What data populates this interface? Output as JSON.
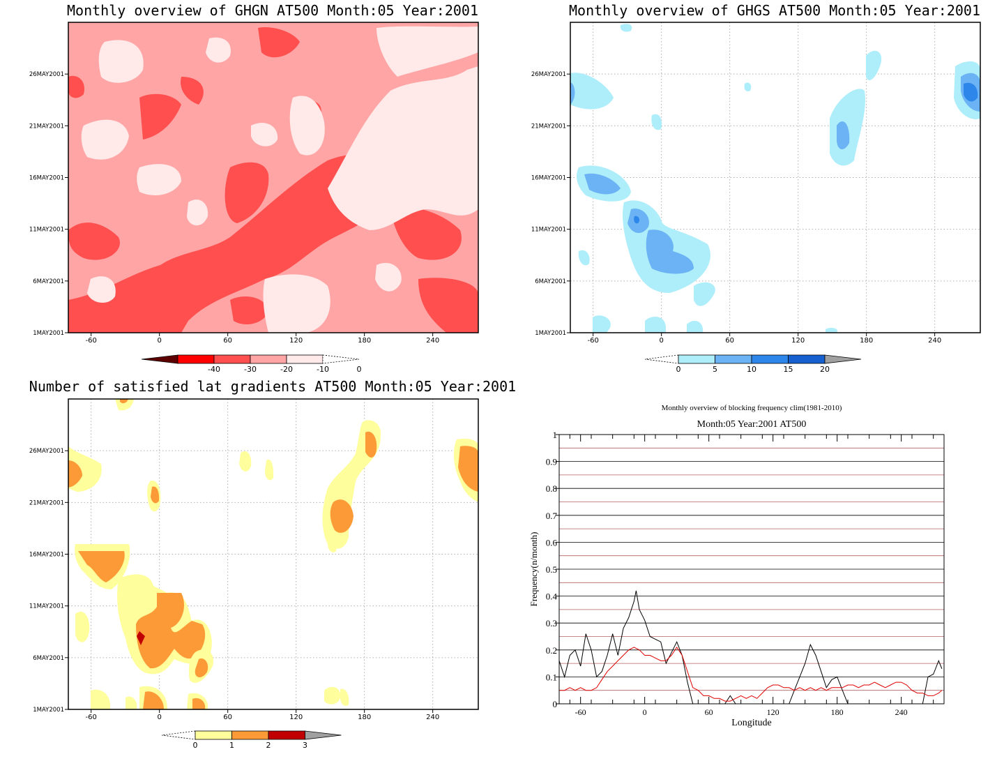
{
  "panels": {
    "ghgn": {
      "title": "Monthly overview of GHGN AT500 Month:05 Year:2001",
      "y_ticks": [
        "1MAY2001",
        "6MAY2001",
        "11MAY2001",
        "16MAY2001",
        "21MAY2001",
        "26MAY2001"
      ],
      "x_ticks": [
        "-60",
        "0",
        "60",
        "120",
        "180",
        "240"
      ],
      "colorbar_labels": [
        "-40",
        "-30",
        "-20",
        "-10",
        "0"
      ],
      "colors": [
        "#5c0000",
        "#ff0000",
        "#ff4f4f",
        "#ffa5a5",
        "#ffe9e9",
        "#ffffff"
      ]
    },
    "ghgs": {
      "title": "Monthly overview of GHGS AT500 Month:05 Year:2001",
      "y_ticks": [
        "1MAY2001",
        "6MAY2001",
        "11MAY2001",
        "16MAY2001",
        "21MAY2001",
        "26MAY2001"
      ],
      "x_ticks": [
        "-60",
        "0",
        "60",
        "120",
        "180",
        "240"
      ],
      "colorbar_labels": [
        "0",
        "5",
        "10",
        "15",
        "20"
      ],
      "colors": [
        "#ffffff",
        "#aeeefa",
        "#6bb3f4",
        "#2d86ea",
        "#1661cf",
        "#a0a0a0"
      ]
    },
    "gradients": {
      "title": "Number of satisfied lat gradients AT500 Month:05 Year:2001",
      "y_ticks": [
        "1MAY2001",
        "6MAY2001",
        "11MAY2001",
        "16MAY2001",
        "21MAY2001",
        "26MAY2001"
      ],
      "x_ticks": [
        "-60",
        "0",
        "60",
        "120",
        "180",
        "240"
      ],
      "colorbar_labels": [
        "0",
        "1",
        "2",
        "3"
      ],
      "colors": [
        "#ffffff",
        "#fefe9c",
        "#fb9a36",
        "#c00000",
        "#a0a0a0"
      ]
    }
  },
  "chart_data": {
    "type": "line",
    "title": "Monthly overview of blocking frequency clim(1981-2010)",
    "subtitle": "Month:05 Year:2001  AT500",
    "xlabel": "Longitude",
    "ylabel": "Frequency(n/month)",
    "xlim": [
      -80,
      280
    ],
    "ylim": [
      0,
      1
    ],
    "x_ticks": [
      -60,
      0,
      60,
      120,
      180,
      240
    ],
    "y_ticks": [
      0,
      0.1,
      0.2,
      0.3,
      0.4,
      0.5,
      0.6,
      0.7,
      0.8,
      0.9,
      1
    ],
    "series": [
      {
        "color": "#000000",
        "x": [
          -80,
          -75,
          -70,
          -65,
          -60,
          -55,
          -50,
          -45,
          -40,
          -35,
          -30,
          -25,
          -20,
          -15,
          -10,
          -8,
          -5,
          0,
          5,
          10,
          15,
          20,
          25,
          30,
          35,
          40,
          45,
          50,
          55,
          60,
          65,
          70,
          75,
          80,
          85,
          90,
          95,
          100,
          105,
          110,
          115,
          120,
          125,
          130,
          135,
          140,
          145,
          150,
          155,
          160,
          165,
          170,
          175,
          180,
          185,
          190,
          195,
          200,
          205,
          210,
          215,
          220,
          225,
          230,
          235,
          240,
          245,
          250,
          255,
          260,
          265,
          270,
          275,
          278
        ],
        "y": [
          0.16,
          0.1,
          0.18,
          0.2,
          0.14,
          0.26,
          0.2,
          0.1,
          0.12,
          0.18,
          0.26,
          0.18,
          0.28,
          0.32,
          0.38,
          0.42,
          0.35,
          0.31,
          0.25,
          0.24,
          0.23,
          0.15,
          0.19,
          0.23,
          0.18,
          0.08,
          0.0,
          0.0,
          0.0,
          0.0,
          0.0,
          0.0,
          0.0,
          0.03,
          0.0,
          0.0,
          0.0,
          0.0,
          0.0,
          0.0,
          0.0,
          0.0,
          0.0,
          0.0,
          0.0,
          0.05,
          0.1,
          0.15,
          0.22,
          0.18,
          0.12,
          0.06,
          0.09,
          0.1,
          0.05,
          0.0,
          0.0,
          0.0,
          0.0,
          0.0,
          0.0,
          0.0,
          0.0,
          0.0,
          0.0,
          0.0,
          0.0,
          0.0,
          0.0,
          0.0,
          0.1,
          0.11,
          0.16,
          0.13
        ]
      },
      {
        "color": "#e00000",
        "x": [
          -80,
          -75,
          -70,
          -65,
          -60,
          -55,
          -50,
          -45,
          -40,
          -35,
          -30,
          -25,
          -20,
          -15,
          -10,
          -5,
          0,
          5,
          10,
          15,
          20,
          25,
          30,
          35,
          40,
          45,
          50,
          55,
          60,
          65,
          70,
          75,
          80,
          85,
          90,
          95,
          100,
          105,
          110,
          115,
          120,
          125,
          130,
          135,
          140,
          145,
          150,
          155,
          160,
          165,
          170,
          175,
          180,
          185,
          190,
          195,
          200,
          205,
          210,
          215,
          220,
          225,
          230,
          235,
          240,
          245,
          250,
          255,
          260,
          265,
          270,
          275,
          278
        ],
        "y": [
          0.05,
          0.05,
          0.06,
          0.05,
          0.06,
          0.05,
          0.05,
          0.06,
          0.09,
          0.12,
          0.14,
          0.16,
          0.18,
          0.2,
          0.21,
          0.2,
          0.18,
          0.18,
          0.17,
          0.16,
          0.16,
          0.18,
          0.21,
          0.18,
          0.12,
          0.06,
          0.05,
          0.03,
          0.03,
          0.02,
          0.02,
          0.01,
          0.01,
          0.02,
          0.03,
          0.02,
          0.03,
          0.02,
          0.04,
          0.06,
          0.07,
          0.07,
          0.06,
          0.06,
          0.05,
          0.06,
          0.05,
          0.06,
          0.05,
          0.06,
          0.05,
          0.06,
          0.06,
          0.06,
          0.07,
          0.07,
          0.06,
          0.07,
          0.07,
          0.08,
          0.07,
          0.06,
          0.07,
          0.08,
          0.08,
          0.07,
          0.05,
          0.04,
          0.04,
          0.03,
          0.03,
          0.04,
          0.05
        ]
      }
    ],
    "reference_lines": {
      "color": "#b06060",
      "y": [
        0.05,
        0.15,
        0.25,
        0.35,
        0.45,
        0.55,
        0.65,
        0.75,
        0.85,
        0.95
      ]
    }
  }
}
